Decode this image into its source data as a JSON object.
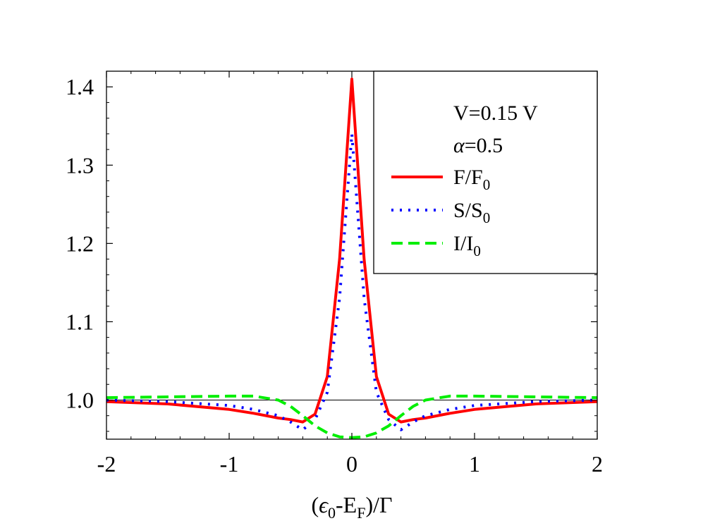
{
  "chart_data": {
    "type": "line",
    "xlabel": "(ε0-EF)/Γ",
    "xlim": [
      -2,
      2
    ],
    "ylim": [
      0.95,
      1.42
    ],
    "x_ticks": [
      -2,
      -1,
      0,
      1,
      2
    ],
    "x_tick_labels": [
      "-2",
      "-1",
      "0",
      "1",
      "2"
    ],
    "y_ticks": [
      1.0,
      1.1,
      1.2,
      1.3,
      1.4
    ],
    "y_tick_labels": [
      "1.0",
      "1.1",
      "1.2",
      "1.3",
      "1.4"
    ],
    "reference_line_y": 1.0,
    "grid": false,
    "legend": {
      "position": "top-right",
      "header_lines": [
        "V=0.15 V",
        "α=0.5"
      ],
      "entries": [
        "F/F0",
        "S/S0",
        "I/I0"
      ]
    },
    "series": [
      {
        "name": "F/F0",
        "color": "#ff0000",
        "style": "solid",
        "x": [
          -2,
          -1.5,
          -1,
          -0.8,
          -0.6,
          -0.5,
          -0.4,
          -0.3,
          -0.2,
          -0.1,
          0,
          0.1,
          0.2,
          0.3,
          0.4,
          0.5,
          0.6,
          0.8,
          1,
          1.5,
          2
        ],
        "values": [
          0.998,
          0.995,
          0.988,
          0.983,
          0.977,
          0.975,
          0.972,
          0.982,
          1.03,
          1.18,
          1.41,
          1.18,
          1.03,
          0.982,
          0.972,
          0.975,
          0.977,
          0.983,
          0.988,
          0.995,
          0.998
        ]
      },
      {
        "name": "S/S0",
        "color": "#0000ff",
        "style": "dotted",
        "x": [
          -2,
          -1.5,
          -1,
          -0.8,
          -0.6,
          -0.5,
          -0.4,
          -0.3,
          -0.2,
          -0.1,
          0,
          0.1,
          0.2,
          0.3,
          0.4,
          0.5,
          0.6,
          0.8,
          1,
          1.5,
          2
        ],
        "values": [
          1.0,
          0.998,
          0.993,
          0.988,
          0.98,
          0.972,
          0.962,
          0.975,
          1.01,
          1.13,
          1.34,
          1.13,
          1.01,
          0.975,
          0.962,
          0.972,
          0.98,
          0.988,
          0.993,
          0.998,
          1.0
        ]
      },
      {
        "name": "I/I0",
        "color": "#00ee00",
        "style": "dashed",
        "x": [
          -2,
          -1.5,
          -1,
          -0.8,
          -0.6,
          -0.5,
          -0.4,
          -0.3,
          -0.2,
          -0.1,
          0,
          0.1,
          0.2,
          0.3,
          0.4,
          0.5,
          0.6,
          0.8,
          1,
          1.5,
          2
        ],
        "values": [
          1.003,
          1.004,
          1.005,
          1.005,
          1.0,
          0.992,
          0.98,
          0.967,
          0.958,
          0.953,
          0.952,
          0.953,
          0.958,
          0.967,
          0.98,
          0.992,
          1.0,
          1.005,
          1.005,
          1.004,
          1.003
        ]
      }
    ]
  }
}
